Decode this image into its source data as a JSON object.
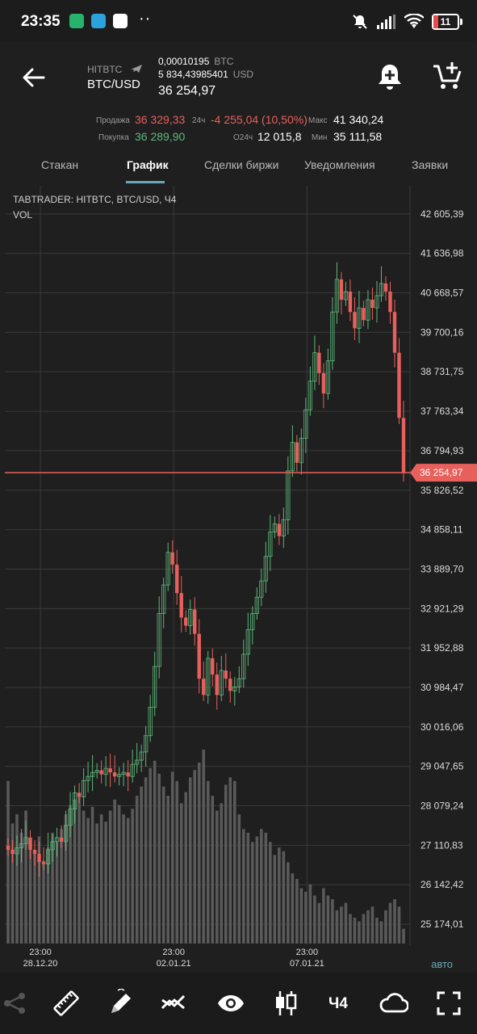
{
  "status_bar": {
    "time": "23:35",
    "battery": "11"
  },
  "header": {
    "exchange": "HITBTC",
    "pair": "BTC/USD",
    "balance_btc": "0,00010195",
    "balance_btc_unit": "BTC",
    "balance_usd": "5 834,43985401",
    "balance_usd_unit": "USD",
    "last_price": "36 254,97",
    "icons": {
      "back": "arrow-left-icon",
      "alert": "bell-plus-icon",
      "order": "cart-plus-icon",
      "exchange": "plane-icon"
    }
  },
  "stats": {
    "sell_label": "Продажа",
    "sell_value": "36 329,33",
    "buy_label": "Покупка",
    "buy_value": "36 289,90",
    "change_label": "24ч",
    "change_value": "-4 255,04 (10,50%)",
    "volume_label": "О24ч",
    "volume_value": "12 015,8",
    "max_label": "Макс",
    "max_value": "41 340,24",
    "min_label": "Мин",
    "min_value": "35 111,58",
    "colors": {
      "sell": "#e8605c",
      "buy": "#5db87b"
    }
  },
  "tabs": [
    {
      "label": "Стакан",
      "active": false
    },
    {
      "label": "График",
      "active": true
    },
    {
      "label": "Сделки биржи",
      "active": false
    },
    {
      "label": "Уведомления",
      "active": false
    },
    {
      "label": "Заявки",
      "active": false
    }
  ],
  "chart_meta": {
    "title": "TABTRADER: HITBTC, BTC/USD, Ч4",
    "indicator": "VOL",
    "current_price_label": "36 254,97",
    "scale_mode": "авто"
  },
  "chart_data": {
    "type": "candlestick",
    "title": "TABTRADER: HITBTC, BTC/USD, Ч4",
    "ylim": [
      24700,
      42900
    ],
    "y_ticks": [
      "42 605,39",
      "41 636,98",
      "40 668,57",
      "39 700,16",
      "38 731,75",
      "37 763,34",
      "36 794,93",
      "35 826,52",
      "34 858,11",
      "33 889,70",
      "32 921,29",
      "31 952,88",
      "30 984,47",
      "30 016,06",
      "29 047,65",
      "28 079,24",
      "27 110,83",
      "26 142,42",
      "25 174,01"
    ],
    "y_tick_values": [
      42605.39,
      41636.98,
      40668.57,
      39700.16,
      38731.75,
      37763.34,
      36794.93,
      35826.52,
      34858.11,
      33889.7,
      32921.29,
      31952.88,
      30984.47,
      30016.06,
      29047.65,
      28079.24,
      27110.83,
      26142.42,
      25174.01
    ],
    "x_ticks": [
      {
        "time": "23:00",
        "date": "28.12.20",
        "index": 4
      },
      {
        "time": "23:00",
        "date": "02.01.21",
        "index": 34
      },
      {
        "time": "23:00",
        "date": "07.01.21",
        "index": 64
      }
    ],
    "current_price": 36254.97,
    "colors": {
      "up": "#5db87b",
      "down": "#e8605c",
      "volume": "#5a5a5a",
      "price_line": "#e8605c"
    },
    "closes": [
      27000,
      26900,
      27050,
      27150,
      27300,
      27000,
      26900,
      26700,
      26650,
      27000,
      27200,
      27300,
      27200,
      27600,
      28000,
      28400,
      28300,
      28700,
      28800,
      28900,
      28950,
      28850,
      29000,
      28900,
      28800,
      28850,
      28900,
      28800,
      29100,
      29200,
      29400,
      29800,
      30500,
      31500,
      32800,
      33500,
      34300,
      34000,
      33300,
      32700,
      32500,
      32900,
      32300,
      31200,
      30800,
      31700,
      31300,
      30800,
      31400,
      31200,
      30900,
      31000,
      31200,
      31800,
      32400,
      32800,
      33200,
      33600,
      34200,
      34800,
      35000,
      34700,
      35100,
      36300,
      37000,
      36500,
      37100,
      37800,
      38500,
      39200,
      38700,
      38200,
      39000,
      40200,
      41000,
      40500,
      40700,
      40200,
      39800,
      40300,
      40000,
      40500,
      40300,
      40600,
      40900,
      40700,
      40200,
      39200,
      37600,
      36255
    ],
    "volumes": [
      88,
      65,
      70,
      60,
      72,
      55,
      50,
      58,
      45,
      52,
      60,
      55,
      62,
      70,
      75,
      78,
      80,
      72,
      68,
      74,
      65,
      70,
      66,
      72,
      78,
      75,
      70,
      68,
      73,
      80,
      85,
      90,
      95,
      99,
      92,
      85,
      80,
      93,
      88,
      76,
      82,
      90,
      94,
      98,
      105,
      88,
      80,
      72,
      76,
      86,
      90,
      88,
      70,
      62,
      60,
      55,
      58,
      62,
      60,
      55,
      48,
      52,
      50,
      44,
      38,
      35,
      30,
      28,
      32,
      26,
      22,
      30,
      26,
      24,
      18,
      20,
      22,
      16,
      14,
      12,
      16,
      18,
      20,
      14,
      12,
      18,
      22,
      24,
      20,
      8
    ]
  },
  "toolbar": {
    "timeframe": "Ч4",
    "icons": [
      "share-icon",
      "ruler-icon",
      "pencil-icon",
      "indicators-icon",
      "eye-icon",
      "candles-icon",
      "cloud-icon",
      "fullscreen-icon"
    ]
  }
}
